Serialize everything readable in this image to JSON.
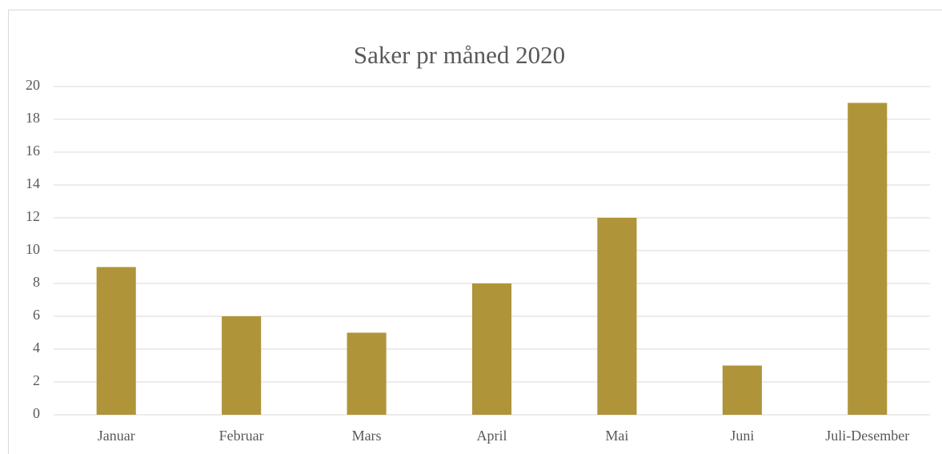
{
  "chart_data": {
    "type": "bar",
    "title": "Saker pr måned 2020",
    "categories": [
      "Januar",
      "Februar",
      "Mars",
      "April",
      "Mai",
      "Juni",
      "Juli-Desember"
    ],
    "values": [
      9,
      6,
      5,
      8,
      12,
      3,
      19
    ],
    "color": "#b0943a",
    "ylim": [
      0,
      20
    ],
    "yticks": [
      0,
      2,
      4,
      6,
      8,
      10,
      12,
      14,
      16,
      18,
      20
    ],
    "grid": true
  }
}
